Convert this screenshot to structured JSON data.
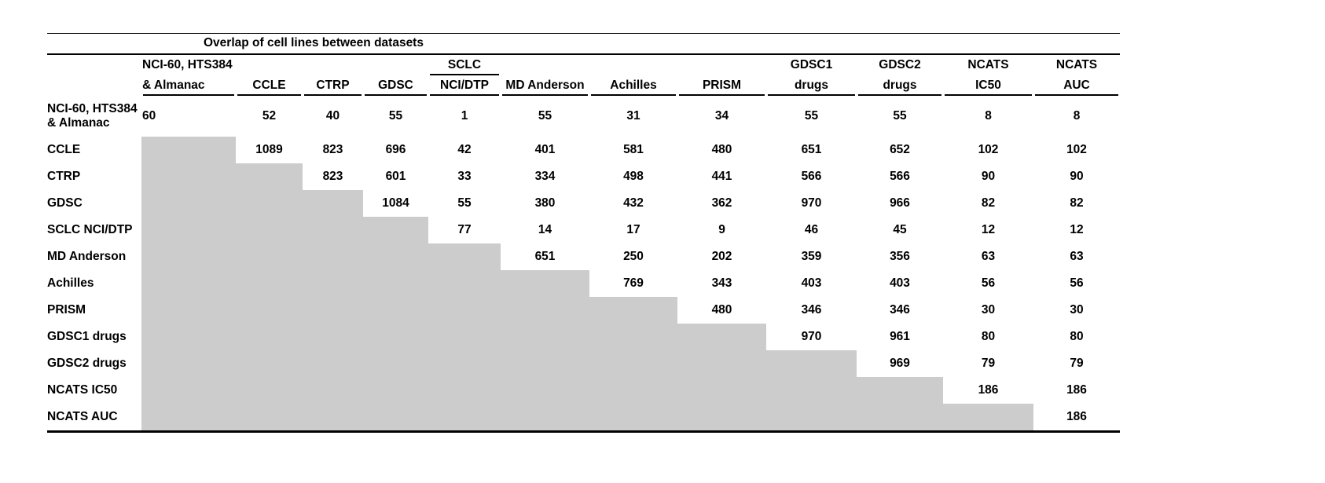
{
  "chart_data": {
    "type": "table",
    "title": "Overlap of cell lines between datasets",
    "columns": [
      {
        "top": "NCI-60, HTS384",
        "bottom": "& Almanac"
      },
      {
        "top": "",
        "bottom": "CCLE"
      },
      {
        "top": "",
        "bottom": "CTRP"
      },
      {
        "top": "",
        "bottom": "GDSC"
      },
      {
        "top": "SCLC",
        "bottom": "NCI/DTP"
      },
      {
        "top": "",
        "bottom": "MD Anderson"
      },
      {
        "top": "",
        "bottom": "Achilles"
      },
      {
        "top": "",
        "bottom": "PRISM"
      },
      {
        "top": "GDSC1",
        "bottom": "drugs"
      },
      {
        "top": "GDSC2",
        "bottom": "drugs"
      },
      {
        "top": "NCATS",
        "bottom": "IC50"
      },
      {
        "top": "NCATS",
        "bottom": "AUC"
      }
    ],
    "rows": [
      {
        "label": "NCI-60, HTS384 & Almanac",
        "values": [
          60,
          52,
          40,
          55,
          1,
          55,
          31,
          34,
          55,
          55,
          8,
          8
        ]
      },
      {
        "label": "CCLE",
        "values": [
          1089,
          823,
          696,
          42,
          401,
          581,
          480,
          651,
          652,
          102,
          102
        ]
      },
      {
        "label": "CTRP",
        "values": [
          823,
          601,
          33,
          334,
          498,
          441,
          566,
          566,
          90,
          90
        ]
      },
      {
        "label": "GDSC",
        "values": [
          1084,
          55,
          380,
          432,
          362,
          970,
          966,
          82,
          82
        ]
      },
      {
        "label": "SCLC NCI/DTP",
        "values": [
          77,
          14,
          17,
          9,
          46,
          45,
          12,
          12
        ]
      },
      {
        "label": "MD Anderson",
        "values": [
          651,
          250,
          202,
          359,
          356,
          63,
          63
        ]
      },
      {
        "label": "Achilles",
        "values": [
          769,
          343,
          403,
          403,
          56,
          56
        ]
      },
      {
        "label": "PRISM",
        "values": [
          480,
          346,
          346,
          30,
          30
        ]
      },
      {
        "label": "GDSC1 drugs",
        "values": [
          970,
          961,
          80,
          80
        ]
      },
      {
        "label": "GDSC2 drugs",
        "values": [
          969,
          79,
          79
        ]
      },
      {
        "label": "NCATS IC50",
        "values": [
          186,
          186
        ]
      },
      {
        "label": "NCATS AUC",
        "values": [
          186
        ]
      }
    ],
    "layout": {
      "matrix": "upper-triangular; each row's values start at its diagonal column",
      "lower_triangle_shade": "#cccccc",
      "grid": "off",
      "legend": "off"
    }
  }
}
